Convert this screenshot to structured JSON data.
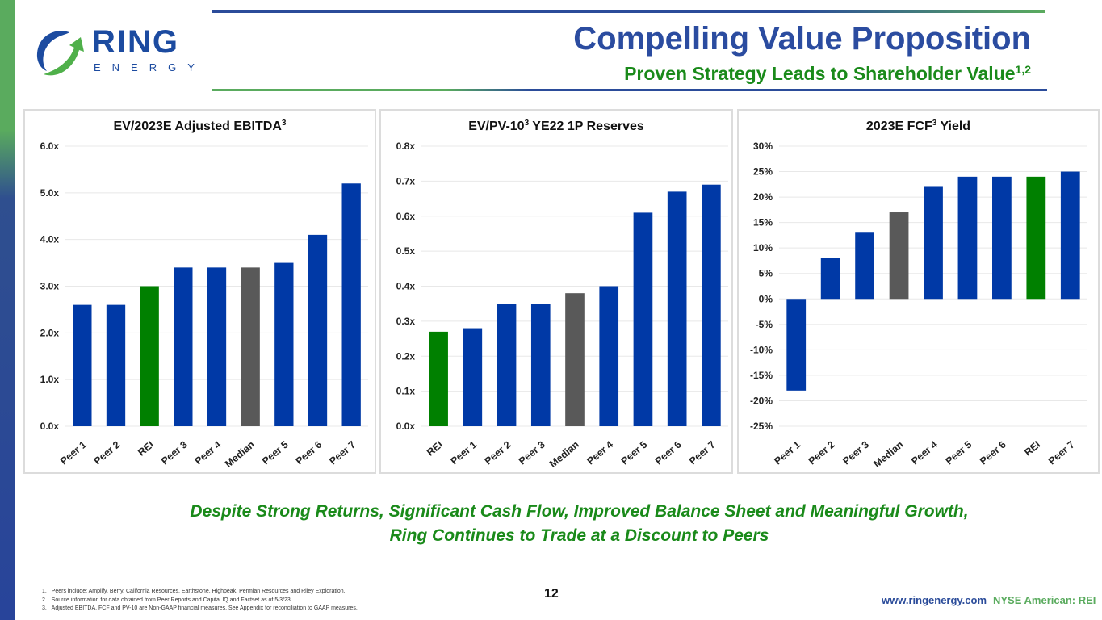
{
  "brand": {
    "logo_text": "RING",
    "logo_subtext": "ENERGY",
    "colors": {
      "blue": "#0039a6",
      "green": "#008000",
      "gray": "#595959",
      "title_blue": "#2b4ca0",
      "accent_green": "#1a8a1a"
    }
  },
  "header": {
    "title": "Compelling Value Proposition",
    "subtitle": "Proven Strategy Leads to Shareholder Value",
    "subtitle_sup": "1,2"
  },
  "chart_data": [
    {
      "type": "bar",
      "title": "EV/2023E Adjusted EBITDA",
      "title_sup": "3",
      "categories": [
        "Peer 1",
        "Peer 2",
        "REI",
        "Peer 3",
        "Peer 4",
        "Median",
        "Peer 5",
        "Peer 6",
        "Peer 7"
      ],
      "values": [
        2.6,
        2.6,
        3.0,
        3.4,
        3.4,
        3.4,
        3.5,
        4.1,
        5.2
      ],
      "highlight": {
        "REI": "green",
        "Median": "gray"
      },
      "ylim": [
        0,
        6
      ],
      "yticks": [
        0,
        1,
        2,
        3,
        4,
        5,
        6
      ],
      "ytick_labels": [
        "0.0x",
        "1.0x",
        "2.0x",
        "3.0x",
        "4.0x",
        "5.0x",
        "6.0x"
      ],
      "xlabel": "",
      "ylabel": "",
      "grid": true
    },
    {
      "type": "bar",
      "title": "EV/PV-10",
      "title_sup": "3",
      "title_suffix": " YE22 1P Reserves",
      "categories": [
        "REI",
        "Peer 1",
        "Peer 2",
        "Peer 3",
        "Median",
        "Peer 4",
        "Peer 5",
        "Peer 6",
        "Peer 7"
      ],
      "values": [
        0.27,
        0.28,
        0.35,
        0.35,
        0.38,
        0.4,
        0.61,
        0.67,
        0.69
      ],
      "highlight": {
        "REI": "green",
        "Median": "gray"
      },
      "ylim": [
        0,
        0.8
      ],
      "yticks": [
        0,
        0.1,
        0.2,
        0.3,
        0.4,
        0.5,
        0.6,
        0.7,
        0.8
      ],
      "ytick_labels": [
        "0.0x",
        "0.1x",
        "0.2x",
        "0.3x",
        "0.4x",
        "0.5x",
        "0.6x",
        "0.7x",
        "0.8x"
      ],
      "xlabel": "",
      "ylabel": "",
      "grid": true
    },
    {
      "type": "bar",
      "title": "2023E FCF",
      "title_sup": "3",
      "title_suffix": " Yield",
      "categories": [
        "Peer 1",
        "Peer 2",
        "Peer 3",
        "Median",
        "Peer 4",
        "Peer 5",
        "Peer 6",
        "REI",
        "Peer 7"
      ],
      "values": [
        -18,
        8,
        13,
        17,
        22,
        24,
        24,
        24,
        25
      ],
      "unit": "%",
      "highlight": {
        "REI": "green",
        "Median": "gray"
      },
      "ylim": [
        -25,
        30
      ],
      "yticks": [
        -25,
        -20,
        -15,
        -10,
        -5,
        0,
        5,
        10,
        15,
        20,
        25,
        30
      ],
      "ytick_labels": [
        "-25%",
        "-20%",
        "-15%",
        "-10%",
        "-5%",
        "0%",
        "5%",
        "10%",
        "15%",
        "20%",
        "25%",
        "30%"
      ],
      "xlabel": "",
      "ylabel": "",
      "grid": true
    }
  ],
  "tagline": {
    "line1": "Despite Strong Returns, Significant Cash Flow, Improved Balance Sheet and Meaningful Growth,",
    "line2": "Ring Continues to Trade at a Discount to Peers"
  },
  "footer": {
    "footnotes": [
      "1.   Peers include: Amplify, Berry, California Resources, Earthstone, Highpeak, Permian Resources and Riley Exploration.",
      "2.   Source information for data obtained from Peer Reports and Capital IQ and Factset as of 5/3/23.",
      "3.   Adjusted EBITDA, FCF and PV-10 are Non-GAAP financial measures. See Appendix for reconciliation to GAAP measures."
    ],
    "page_number": "12",
    "website": "www.ringenergy.com",
    "ticker": "NYSE American: REI"
  }
}
